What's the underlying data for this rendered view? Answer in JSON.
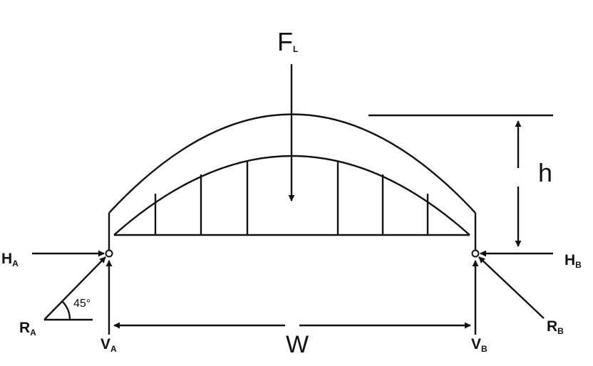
{
  "colors": {
    "ink": "#111111",
    "background": "#ffffff"
  },
  "labels": {
    "load": {
      "main": "F",
      "sub": "L"
    },
    "height": "h",
    "width": "W",
    "ha": {
      "main": "H",
      "sub": "A"
    },
    "hb": {
      "main": "H",
      "sub": "B"
    },
    "ra": {
      "main": "R",
      "sub": "A"
    },
    "rb": {
      "main": "R",
      "sub": "B"
    },
    "va": {
      "main": "V",
      "sub": "A"
    },
    "vb": {
      "main": "V",
      "sub": "B"
    },
    "angle": "45°"
  }
}
